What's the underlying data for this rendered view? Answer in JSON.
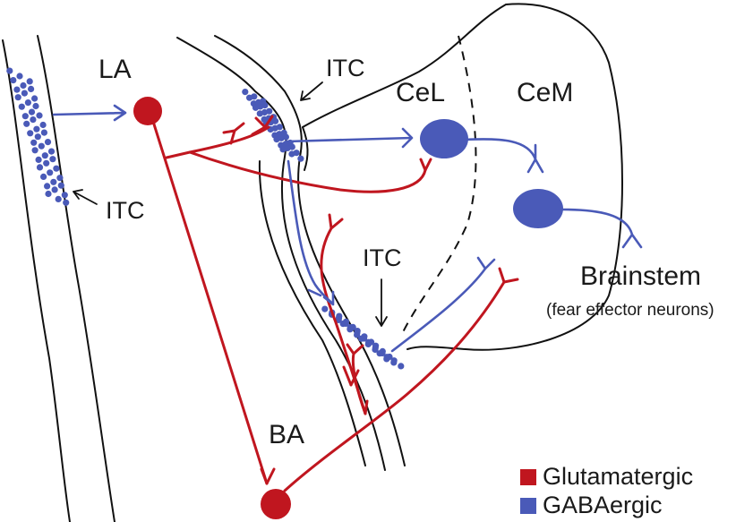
{
  "colors": {
    "glutamatergic": "#c0161f",
    "gabaergic": "#4a5ab8"
  },
  "labels": {
    "la": "LA",
    "ba": "BA",
    "cel": "CeL",
    "cem": "CeM",
    "itc_top": "ITC",
    "itc_left": "ITC",
    "itc_mid": "ITC",
    "brainstem": "Brainstem",
    "brainstem_sub": "(fear effector neurons)"
  },
  "legend": {
    "items": [
      {
        "label": "Glutamatergic",
        "color": "#c0161f"
      },
      {
        "label": "GABAergic",
        "color": "#4a5ab8"
      }
    ]
  }
}
